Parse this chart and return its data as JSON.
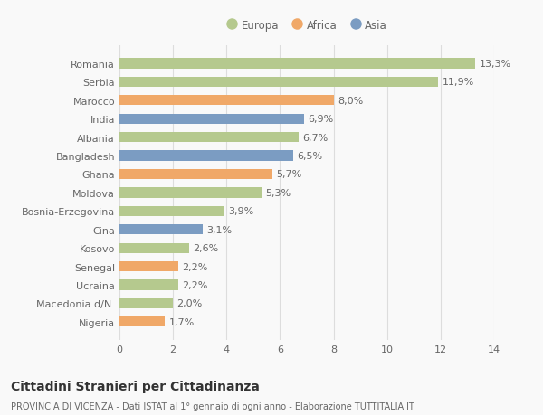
{
  "categories": [
    "Romania",
    "Serbia",
    "Marocco",
    "India",
    "Albania",
    "Bangladesh",
    "Ghana",
    "Moldova",
    "Bosnia-Erzegovina",
    "Cina",
    "Kosovo",
    "Senegal",
    "Ucraina",
    "Macedonia d/N.",
    "Nigeria"
  ],
  "values": [
    13.3,
    11.9,
    8.0,
    6.9,
    6.7,
    6.5,
    5.7,
    5.3,
    3.9,
    3.1,
    2.6,
    2.2,
    2.2,
    2.0,
    1.7
  ],
  "labels": [
    "13,3%",
    "11,9%",
    "8,0%",
    "6,9%",
    "6,7%",
    "6,5%",
    "5,7%",
    "5,3%",
    "3,9%",
    "3,1%",
    "2,6%",
    "2,2%",
    "2,2%",
    "2,0%",
    "1,7%"
  ],
  "continents": [
    "Europa",
    "Europa",
    "Africa",
    "Asia",
    "Europa",
    "Asia",
    "Africa",
    "Europa",
    "Europa",
    "Asia",
    "Europa",
    "Africa",
    "Europa",
    "Europa",
    "Africa"
  ],
  "colors": {
    "Europa": "#b5c98e",
    "Africa": "#f0a868",
    "Asia": "#7b9cc2"
  },
  "legend_labels": [
    "Europa",
    "Africa",
    "Asia"
  ],
  "legend_colors": [
    "#b5c98e",
    "#f0a868",
    "#7b9cc2"
  ],
  "xlim": [
    0,
    14
  ],
  "xticks": [
    0,
    2,
    4,
    6,
    8,
    10,
    12,
    14
  ],
  "title": "Cittadini Stranieri per Cittadinanza",
  "subtitle": "PROVINCIA DI VICENZA - Dati ISTAT al 1° gennaio di ogni anno - Elaborazione TUTTITALIA.IT",
  "bg_color": "#f9f9f9",
  "grid_color": "#dddddd",
  "bar_height": 0.55,
  "label_fontsize": 8,
  "tick_fontsize": 8,
  "title_fontsize": 10,
  "subtitle_fontsize": 7
}
